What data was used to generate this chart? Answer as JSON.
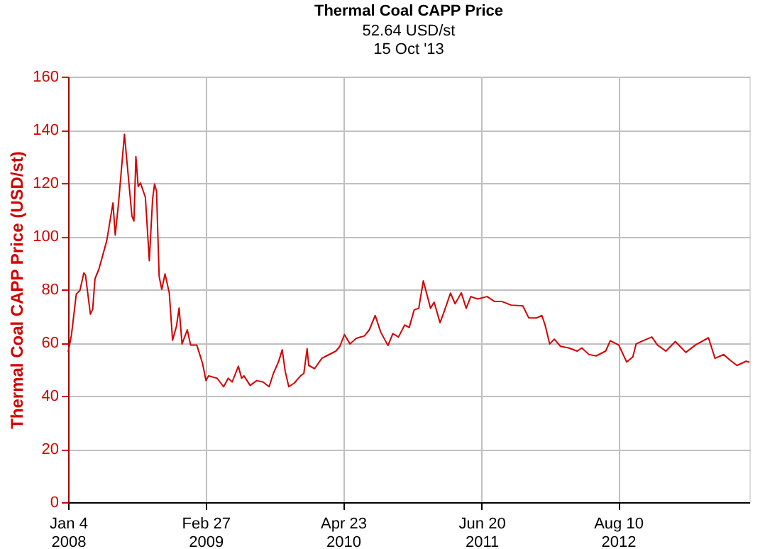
{
  "chart_data": {
    "type": "line",
    "title": "Thermal Coal CAPP Price",
    "subtitle": "52.64 USD/st\n15 Oct '13",
    "ylabel": "Thermal Coal CAPP Price (USD/st)",
    "x": [
      "2008-01-04",
      "2008-01-14",
      "2008-01-29",
      "2008-02-09",
      "2008-02-21",
      "2008-02-26",
      "2008-03-12",
      "2008-03-19",
      "2008-03-26",
      "2008-04-07",
      "2008-05-01",
      "2008-05-20",
      "2008-05-27",
      "2008-06-06",
      "2008-06-24",
      "2008-07-17",
      "2008-07-23",
      "2008-07-29",
      "2008-08-05",
      "2008-08-12",
      "2008-08-27",
      "2008-09-08",
      "2008-09-18",
      "2008-09-24",
      "2008-09-30",
      "2008-10-08",
      "2008-10-16",
      "2008-10-26",
      "2008-11-08",
      "2008-11-18",
      "2008-11-30",
      "2008-12-08",
      "2008-12-17",
      "2009-01-02",
      "2009-01-12",
      "2009-01-31",
      "2009-02-18",
      "2009-02-28",
      "2009-03-08",
      "2009-04-03",
      "2009-04-23",
      "2009-05-07",
      "2009-05-19",
      "2009-06-07",
      "2009-06-17",
      "2009-06-24",
      "2009-07-13",
      "2009-08-02",
      "2009-08-21",
      "2009-09-09",
      "2009-09-22",
      "2009-10-08",
      "2009-10-19",
      "2009-10-28",
      "2009-11-08",
      "2009-11-25",
      "2009-12-14",
      "2009-12-24",
      "2010-01-03",
      "2010-01-08",
      "2010-01-26",
      "2010-02-17",
      "2010-03-03",
      "2010-04-01",
      "2010-04-13",
      "2010-04-27",
      "2010-05-14",
      "2010-06-02",
      "2010-06-27",
      "2010-07-12",
      "2010-07-30",
      "2010-08-16",
      "2010-09-07",
      "2010-09-22",
      "2010-10-09",
      "2010-10-28",
      "2010-11-11",
      "2010-11-26",
      "2010-12-10",
      "2010-12-24",
      "2011-01-15",
      "2011-01-26",
      "2011-02-13",
      "2011-02-24",
      "2011-03-17",
      "2011-03-31",
      "2011-04-19",
      "2011-05-04",
      "2011-05-18",
      "2011-06-08",
      "2011-07-07",
      "2011-07-29",
      "2011-08-20",
      "2011-09-18",
      "2011-10-24",
      "2011-11-11",
      "2011-12-06",
      "2011-12-21",
      "2011-12-31",
      "2012-01-14",
      "2012-01-28",
      "2012-02-16",
      "2012-03-12",
      "2012-04-07",
      "2012-04-21",
      "2012-05-13",
      "2012-06-04",
      "2012-07-03",
      "2012-07-17",
      "2012-08-12",
      "2012-09-05",
      "2012-09-24",
      "2012-10-04",
      "2012-10-25",
      "2012-11-21",
      "2012-12-08",
      "2013-01-03",
      "2013-02-01",
      "2013-03-05",
      "2013-04-03",
      "2013-05-13",
      "2013-06-02",
      "2013-06-28",
      "2013-07-20",
      "2013-08-08",
      "2013-09-05",
      "2013-09-15"
    ],
    "series": [
      {
        "color": "#d40000",
        "values": [
          56.4,
          62.7,
          78.3,
          79.6,
          86.2,
          85.4,
          70.7,
          72.5,
          84,
          87.6,
          98.3,
          112.5,
          100.4,
          112.5,
          138.3,
          107.5,
          105.7,
          129.9,
          118.7,
          120,
          114.6,
          90.8,
          113.9,
          119.6,
          116.9,
          84.9,
          80,
          85.8,
          78.7,
          60.9,
          66.2,
          73,
          59.5,
          64.8,
          59.1,
          59.1,
          52,
          45.7,
          47.5,
          46.6,
          43.4,
          46.6,
          45.2,
          51.1,
          46.6,
          47.5,
          43.9,
          45.7,
          45.2,
          43.4,
          48.4,
          52.9,
          57.3,
          49.3,
          43.4,
          44.8,
          47.5,
          48.4,
          57.7,
          51.4,
          50.2,
          54.1,
          55,
          56.8,
          58.6,
          63,
          59.5,
          61.6,
          62.5,
          64.8,
          70.2,
          63.9,
          58.9,
          63.4,
          62.1,
          66.6,
          65.7,
          72.3,
          72.9,
          83.2,
          72.9,
          75.2,
          67.5,
          71.1,
          78.6,
          74.6,
          78.7,
          72.9,
          77.3,
          76.4,
          77.3,
          75.5,
          75.5,
          74.1,
          73.8,
          69.3,
          69.3,
          70.2,
          66.6,
          59.5,
          61.3,
          58.6,
          58,
          56.8,
          58,
          55.5,
          55,
          56.8,
          60.7,
          59.1,
          52.7,
          54.6,
          59.5,
          60.7,
          62.1,
          59.1,
          56.8,
          60.4,
          56.3,
          59.1,
          61.8,
          54.1,
          55.5,
          53.2,
          51.4,
          53,
          52.6
        ]
      }
    ],
    "xlim": [
      "2008-01-04",
      "2013-09-15"
    ],
    "xticks": [
      {
        "value": "2008-01-04",
        "label": "Jan 4\n2008"
      },
      {
        "value": "2009-02-27",
        "label": "Feb 27\n2009"
      },
      {
        "value": "2010-04-23",
        "label": "Apr 23\n2010"
      },
      {
        "value": "2011-06-20",
        "label": "Jun 20\n2011"
      },
      {
        "value": "2012-08-10",
        "label": "Aug 10\n2012"
      }
    ],
    "ylim": [
      0,
      160
    ],
    "yticks": [
      0,
      20,
      40,
      60,
      80,
      100,
      120,
      140,
      160
    ],
    "grid": true,
    "line_style": "solid",
    "marker": "none"
  }
}
